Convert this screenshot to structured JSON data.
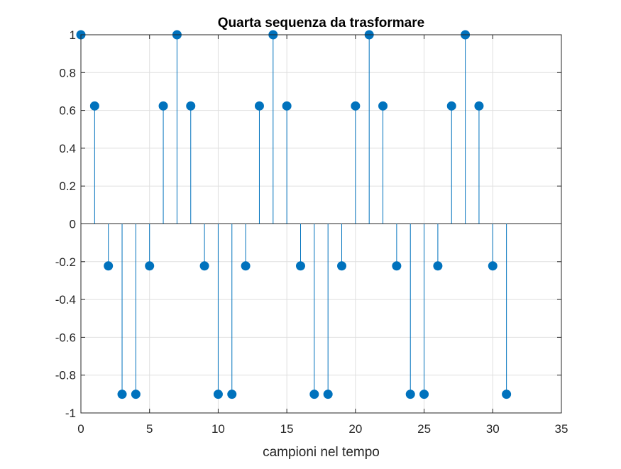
{
  "chart_data": {
    "type": "stem",
    "title": "Quarta sequenza da trasformare",
    "xlabel": "campioni nel tempo",
    "ylabel": "",
    "xlim": [
      0,
      35
    ],
    "ylim": [
      -1,
      1
    ],
    "grid": true,
    "x_ticks": [
      0,
      5,
      10,
      15,
      20,
      25,
      30,
      35
    ],
    "y_ticks": [
      -1,
      -0.8,
      -0.6,
      -0.4,
      -0.2,
      0,
      0.2,
      0.4,
      0.6,
      0.8,
      1
    ],
    "x_tick_labels": [
      "0",
      "5",
      "10",
      "15",
      "20",
      "25",
      "30",
      "35"
    ],
    "y_tick_labels": [
      "-1",
      "-0.8",
      "-0.6",
      "-0.4",
      "-0.2",
      "0",
      "0.2",
      "0.4",
      "0.6",
      "0.8",
      "1"
    ],
    "series": [
      {
        "color": "#0072BD",
        "x": [
          0,
          1,
          2,
          3,
          4,
          5,
          6,
          7,
          8,
          9,
          10,
          11,
          12,
          13,
          14,
          15,
          16,
          17,
          18,
          19,
          20,
          21,
          22,
          23,
          24,
          25,
          26,
          27,
          28,
          29,
          30,
          31
        ],
        "y": [
          1,
          0.6235,
          -0.2225,
          -0.901,
          -0.901,
          -0.2225,
          0.6235,
          1,
          0.6235,
          -0.2225,
          -0.901,
          -0.901,
          -0.2225,
          0.6235,
          1,
          0.6235,
          -0.2225,
          -0.901,
          -0.901,
          -0.2225,
          0.6235,
          1,
          0.6235,
          -0.2225,
          -0.901,
          -0.901,
          -0.2225,
          0.6235,
          1,
          0.6235,
          -0.2225,
          -0.901
        ]
      }
    ]
  }
}
